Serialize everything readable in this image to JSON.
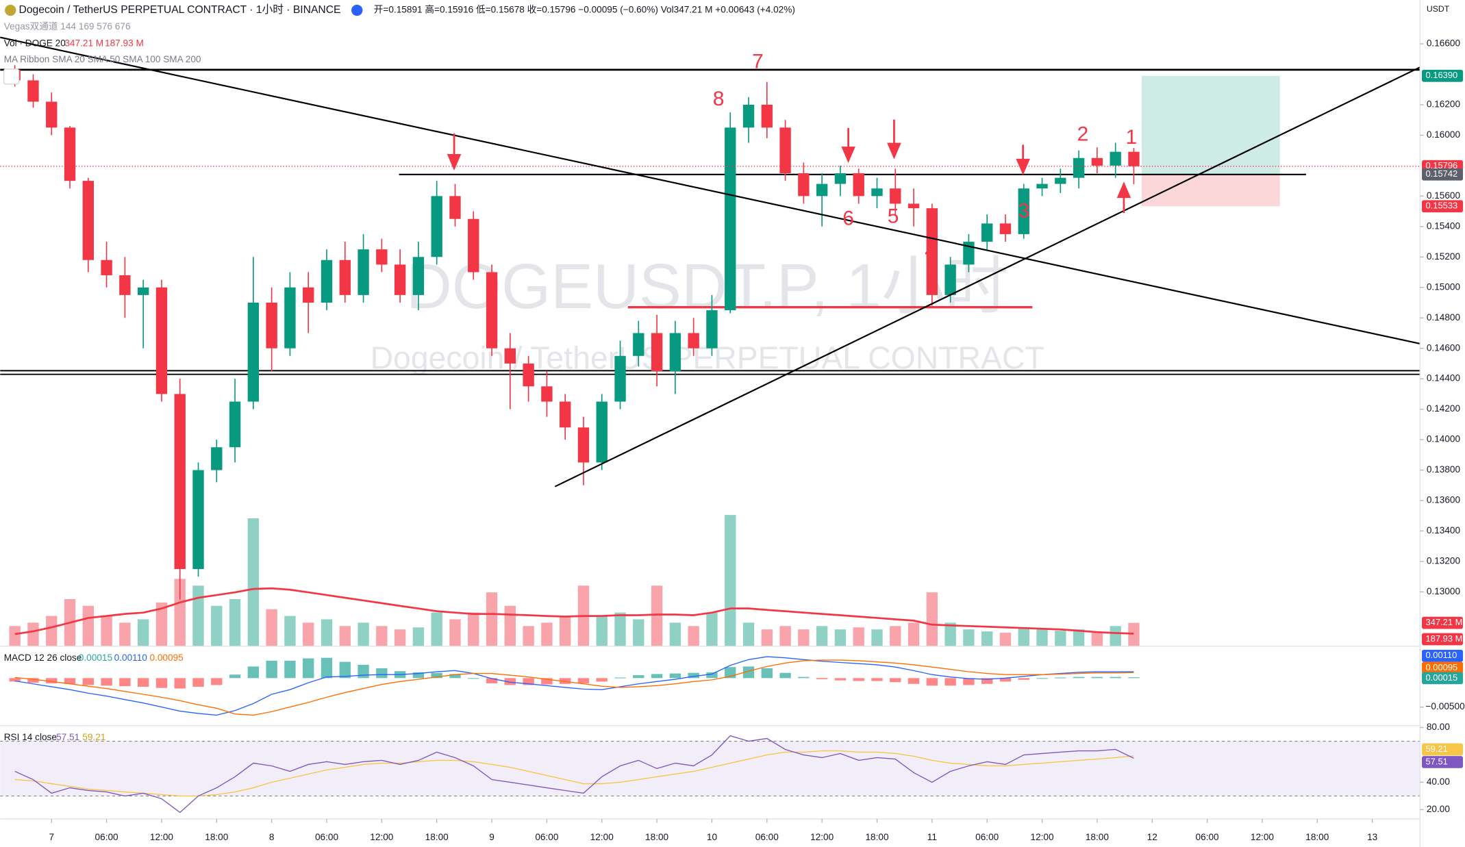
{
  "header": {
    "symbol": "Dogecoin / TetherUS PERPETUAL CONTRACT · 1小时 · BINANCE",
    "ohlc": "开=0.15891  高=0.15916  低=0.15678  收=0.15796  −0.00095 (−0.60%)  Vol347.21 M  +0.00643 (+4.02%)",
    "vegas": "Vegas双通道  144 169 576 676",
    "ribbon": "MA Ribbon SMA 20 SMA 50 SMA 100 SMA 200"
  },
  "chart_data": {
    "type": "candlestick",
    "currency": "USDT",
    "watermark": [
      "DOGEUSDT.P, 1小时",
      "Dogecoin / TetherUS PERPETUAL CONTRACT"
    ],
    "up_color": "#089981",
    "down_color": "#f23645",
    "x": [
      -4,
      -2,
      0,
      2,
      4,
      6,
      8,
      10,
      12,
      14,
      16,
      18,
      20,
      22,
      24,
      26,
      28,
      30,
      32,
      34,
      36,
      38,
      40,
      42,
      44,
      46,
      48,
      50,
      52,
      54,
      56,
      58,
      60,
      62,
      64,
      66,
      68,
      70,
      72,
      74,
      76,
      78,
      80,
      82,
      84,
      86,
      88,
      90,
      92,
      94,
      96,
      98,
      100,
      102,
      104,
      106,
      108,
      110,
      112,
      114,
      116,
      118
    ],
    "open": [
      0.1643,
      0.1636,
      0.1622,
      0.1605,
      0.157,
      0.1518,
      0.1508,
      0.1495,
      0.15,
      0.143,
      0.1315,
      0.138,
      0.1395,
      0.1425,
      0.149,
      0.146,
      0.15,
      0.149,
      0.1518,
      0.1495,
      0.1525,
      0.1515,
      0.1495,
      0.152,
      0.156,
      0.1545,
      0.151,
      0.146,
      0.145,
      0.1435,
      0.1425,
      0.1408,
      0.1385,
      0.1425,
      0.1455,
      0.147,
      0.1445,
      0.147,
      0.146,
      0.1485,
      0.1605,
      0.162,
      0.1605,
      0.1575,
      0.156,
      0.1568,
      0.1575,
      0.156,
      0.1565,
      0.1555,
      0.1552,
      0.1495,
      0.1515,
      0.153,
      0.1542,
      0.1535,
      0.1565,
      0.1568,
      0.1572,
      0.1585,
      0.158,
      0.15891
    ],
    "high": [
      0.1646,
      0.164,
      0.1628,
      0.1606,
      0.1572,
      0.153,
      0.152,
      0.1505,
      0.1505,
      0.144,
      0.1385,
      0.14,
      0.144,
      0.152,
      0.15,
      0.151,
      0.151,
      0.1525,
      0.153,
      0.1535,
      0.1532,
      0.1525,
      0.153,
      0.157,
      0.1568,
      0.155,
      0.1515,
      0.147,
      0.1455,
      0.1445,
      0.143,
      0.1415,
      0.143,
      0.1465,
      0.1478,
      0.1482,
      0.1478,
      0.148,
      0.1495,
      0.1615,
      0.1625,
      0.1635,
      0.161,
      0.1582,
      0.1575,
      0.158,
      0.1578,
      0.1572,
      0.1578,
      0.1565,
      0.1555,
      0.152,
      0.1535,
      0.1548,
      0.1548,
      0.1568,
      0.1572,
      0.1578,
      0.159,
      0.1592,
      0.1595,
      0.15916
    ],
    "low": [
      0.1632,
      0.1618,
      0.16,
      0.1565,
      0.151,
      0.15,
      0.148,
      0.146,
      0.1425,
      0.1295,
      0.131,
      0.1372,
      0.1385,
      0.142,
      0.1445,
      0.1455,
      0.147,
      0.1485,
      0.149,
      0.149,
      0.151,
      0.149,
      0.1485,
      0.1515,
      0.154,
      0.1505,
      0.1455,
      0.142,
      0.1425,
      0.1415,
      0.14,
      0.137,
      0.138,
      0.142,
      0.1448,
      0.1435,
      0.143,
      0.1455,
      0.1455,
      0.1483,
      0.1595,
      0.1598,
      0.157,
      0.1555,
      0.154,
      0.156,
      0.1555,
      0.1552,
      0.1548,
      0.154,
      0.1488,
      0.149,
      0.151,
      0.1525,
      0.153,
      0.1532,
      0.156,
      0.1562,
      0.1565,
      0.1575,
      0.1572,
      0.15678
    ],
    "close": [
      0.1636,
      0.1622,
      0.1605,
      0.157,
      0.1518,
      0.1508,
      0.1495,
      0.15,
      0.143,
      0.1315,
      0.138,
      0.1395,
      0.1425,
      0.149,
      0.146,
      0.15,
      0.149,
      0.1518,
      0.1495,
      0.1525,
      0.1515,
      0.1495,
      0.152,
      0.156,
      0.1545,
      0.151,
      0.146,
      0.145,
      0.1435,
      0.1425,
      0.1408,
      0.1385,
      0.1425,
      0.1455,
      0.147,
      0.1445,
      0.147,
      0.146,
      0.1485,
      0.1605,
      0.162,
      0.1605,
      0.1575,
      0.156,
      0.1568,
      0.1575,
      0.156,
      0.1565,
      0.1555,
      0.1552,
      0.1495,
      0.1515,
      0.153,
      0.1542,
      0.1535,
      0.1565,
      0.1568,
      0.1572,
      0.1585,
      0.158,
      0.15891,
      0.15796
    ],
    "volume": [
      300,
      350,
      450,
      700,
      600,
      450,
      350,
      400,
      650,
      1000,
      900,
      600,
      700,
      1900,
      550,
      450,
      350,
      400,
      300,
      350,
      300,
      250,
      280,
      500,
      400,
      500,
      800,
      600,
      300,
      350,
      450,
      900,
      450,
      500,
      400,
      900,
      350,
      300,
      500,
      1950,
      350,
      250,
      300,
      250,
      300,
      250,
      280,
      250,
      300,
      350,
      800,
      350,
      250,
      220,
      200,
      280,
      250,
      230,
      250,
      200,
      300,
      347.21
    ],
    "volume_ma": [
      180,
      220,
      280,
      350,
      420,
      450,
      480,
      500,
      560,
      650,
      720,
      760,
      800,
      850,
      860,
      840,
      800,
      760,
      720,
      680,
      640,
      600,
      560,
      520,
      500,
      480,
      480,
      470,
      460,
      450,
      440,
      450,
      450,
      460,
      460,
      470,
      470,
      460,
      500,
      560,
      560,
      540,
      520,
      500,
      480,
      460,
      440,
      420,
      400,
      380,
      320,
      310,
      300,
      290,
      280,
      270,
      260,
      250,
      230,
      210,
      195,
      187.93
    ],
    "volume_lim": [
      0,
      9600
    ],
    "volume_ma_color": "#f23645",
    "volume_legend": [
      "Vol · DOGE 20",
      "347.21 M",
      "187.93 M"
    ],
    "xlim": [
      -5.6,
      149.2
    ],
    "xticks": [
      {
        "value": 0,
        "label": "7"
      },
      {
        "value": 6,
        "label": "06:00"
      },
      {
        "value": 12,
        "label": "12:00"
      },
      {
        "value": 18,
        "label": "18:00"
      },
      {
        "value": 24,
        "label": "8"
      },
      {
        "value": 30,
        "label": "06:00"
      },
      {
        "value": 36,
        "label": "12:00"
      },
      {
        "value": 42,
        "label": "18:00"
      },
      {
        "value": 48,
        "label": "9"
      },
      {
        "value": 54,
        "label": "06:00"
      },
      {
        "value": 60,
        "label": "12:00"
      },
      {
        "value": 66,
        "label": "18:00"
      },
      {
        "value": 72,
        "label": "10"
      },
      {
        "value": 78,
        "label": "06:00"
      },
      {
        "value": 84,
        "label": "12:00"
      },
      {
        "value": 90,
        "label": "18:00"
      },
      {
        "value": 96,
        "label": "11"
      },
      {
        "value": 102,
        "label": "06:00"
      },
      {
        "value": 108,
        "label": "12:00"
      },
      {
        "value": 114,
        "label": "18:00"
      },
      {
        "value": 120,
        "label": "12"
      },
      {
        "value": 126,
        "label": "06:00"
      },
      {
        "value": 132,
        "label": "12:00"
      },
      {
        "value": 138,
        "label": "18:00"
      },
      {
        "value": 144,
        "label": "13"
      }
    ],
    "ylim": [
      0.12643,
      0.16888
    ],
    "yticks": [
      {
        "value": 0.166,
        "label": "0.16600"
      },
      {
        "value": 0.162,
        "label": "0.16200"
      },
      {
        "value": 0.16,
        "label": "0.16000"
      },
      {
        "value": 0.156,
        "label": "0.15600"
      },
      {
        "value": 0.154,
        "label": "0.15400"
      },
      {
        "value": 0.152,
        "label": "0.15200"
      },
      {
        "value": 0.15,
        "label": "0.15000"
      },
      {
        "value": 0.148,
        "label": "0.14800"
      },
      {
        "value": 0.146,
        "label": "0.14600"
      },
      {
        "value": 0.144,
        "label": "0.14400"
      },
      {
        "value": 0.142,
        "label": "0.14200"
      },
      {
        "value": 0.14,
        "label": "0.14000"
      },
      {
        "value": 0.138,
        "label": "0.13800"
      },
      {
        "value": 0.136,
        "label": "0.13600"
      },
      {
        "value": 0.134,
        "label": "0.13400"
      },
      {
        "value": 0.132,
        "label": "0.13200"
      },
      {
        "value": 0.13,
        "label": "0.13000"
      }
    ],
    "hlines": [
      {
        "value": 0.1643,
        "color": "#000000"
      },
      {
        "value": 0.15742,
        "color": "#000000"
      },
      {
        "value": 0.1487,
        "color": "#f23645"
      },
      {
        "value": 0.14453,
        "color": "#000000"
      },
      {
        "value": 0.14429,
        "color": "#000000"
      }
    ],
    "position": {
      "entry": 0.15742,
      "target": 0.1639,
      "stop": 0.15533
    },
    "price_labels": [
      {
        "value": 0.1639,
        "label": "0.16390",
        "color": "#089981"
      },
      {
        "value": 0.15796,
        "label": "0.15796",
        "color": "#f23645"
      },
      {
        "value": 0.15742,
        "label": "0.15742",
        "color": "#5d606b"
      },
      {
        "value": 0.15533,
        "label": "0.15533",
        "color": "#f23645"
      }
    ],
    "annotations": [
      "7",
      "8",
      "6",
      "5",
      "4",
      "3",
      "2",
      "1"
    ],
    "macd": {
      "title": "MACD 12 26 close",
      "legend": [
        "0.00015",
        "0.00110",
        "0.00095"
      ],
      "lim": [
        -0.0082,
        0.0055
      ],
      "ticks": [
        {
          "value": -0.005,
          "label": "−0.00500"
        }
      ],
      "line_color": "#2962ff",
      "signal_color": "#ff6d00",
      "hist_up": "#26a69a",
      "hist_down": "#ff5252",
      "macd": [
        -0.0005,
        -0.001,
        -0.0015,
        -0.002,
        -0.0026,
        -0.0031,
        -0.0037,
        -0.0043,
        -0.005,
        -0.0057,
        -0.0061,
        -0.0064,
        -0.0056,
        -0.0044,
        -0.0028,
        -0.002,
        -0.0008,
        0.0002,
        0.0003,
        0.0005,
        0.0006,
        0.0006,
        0.0008,
        0.0011,
        0.0013,
        0.0008,
        -0.0001,
        -0.0007,
        -0.001,
        -0.0013,
        -0.0016,
        -0.0019,
        -0.002,
        -0.0015,
        -0.001,
        -0.0006,
        -0.0002,
        0.0003,
        0.0007,
        0.0022,
        0.0032,
        0.0037,
        0.0035,
        0.0032,
        0.0029,
        0.0027,
        0.0025,
        0.0023,
        0.0019,
        0.0013,
        0.0006,
        0.0002,
        -0.0001,
        -0.0002,
        0,
        0.0003,
        0.0006,
        0.0008,
        0.001,
        0.0011,
        0.0011,
        0.0011
      ],
      "signal": [
        0.0001,
        -0.0002,
        -0.0006,
        -0.001,
        -0.0014,
        -0.0018,
        -0.0023,
        -0.0028,
        -0.0033,
        -0.0039,
        -0.0046,
        -0.0052,
        -0.0062,
        -0.0064,
        -0.0058,
        -0.005,
        -0.0042,
        -0.0033,
        -0.0025,
        -0.0018,
        -0.0011,
        -0.0006,
        -0.0002,
        0.0002,
        0.0006,
        0.0008,
        0.0008,
        0.0005,
        0.0002,
        -0.0002,
        -0.0006,
        -0.001,
        -0.0014,
        -0.0016,
        -0.0015,
        -0.0013,
        -0.001,
        -0.0006,
        -0.0003,
        0.0003,
        0.0012,
        0.002,
        0.0026,
        0.003,
        0.0031,
        0.0031,
        0.003,
        0.0028,
        0.0026,
        0.0023,
        0.0019,
        0.0015,
        0.0011,
        0.0008,
        0.0006,
        0.0006,
        0.0006,
        0.0007,
        0.0008,
        0.0009,
        0.0009,
        0.00095
      ],
      "histogram": [
        -0.0006,
        -0.0008,
        -0.0009,
        -0.001,
        -0.0012,
        -0.0013,
        -0.0014,
        -0.0015,
        -0.0017,
        -0.0018,
        -0.0015,
        -0.0012,
        0.0006,
        0.002,
        0.003,
        0.003,
        0.0034,
        0.0035,
        0.0028,
        0.0023,
        0.0017,
        0.0012,
        0.001,
        0.0009,
        0.0007,
        0,
        -0.0009,
        -0.0012,
        -0.0012,
        -0.0011,
        -0.001,
        -0.0009,
        -0.0006,
        0.0001,
        0.0005,
        0.0007,
        0.0008,
        0.0009,
        0.001,
        0.0019,
        0.002,
        0.0017,
        0.0009,
        0.0002,
        -0.0002,
        -0.0004,
        -0.0005,
        -0.0005,
        -0.0007,
        -0.001,
        -0.0013,
        -0.0013,
        -0.0012,
        -0.001,
        -0.0006,
        -0.0003,
        0,
        0.0001,
        0.0002,
        0.0002,
        0.0002,
        0.00015
      ]
    },
    "rsi": {
      "title": "RSI 14 close",
      "legend": [
        "57.51",
        "59.21"
      ],
      "lim": [
        13.2,
        81.4
      ],
      "band": [
        30,
        70
      ],
      "ticks": [
        {
          "value": 80,
          "label": "80.00"
        },
        {
          "value": 40,
          "label": "40.00"
        },
        {
          "value": 20,
          "label": "20.00"
        }
      ],
      "line_color": "#7e57c2",
      "ma_color": "#f7c548",
      "rsi": [
        48,
        42,
        32,
        36,
        34,
        33,
        30,
        32,
        28,
        18,
        30,
        36,
        44,
        54,
        52,
        48,
        53,
        55,
        53,
        55,
        56,
        53,
        56,
        62,
        58,
        52,
        42,
        40,
        38,
        36,
        34,
        32,
        44,
        52,
        56,
        50,
        54,
        52,
        60,
        74,
        70,
        72,
        64,
        60,
        58,
        61,
        56,
        58,
        57,
        47,
        40,
        48,
        52,
        55,
        53,
        60,
        61,
        62,
        63,
        63,
        64,
        57.51
      ],
      "ma": [
        42,
        41,
        39,
        37,
        35,
        34,
        33,
        32,
        31,
        30,
        30,
        31,
        33,
        36,
        40,
        43,
        46,
        49,
        51,
        53,
        54,
        54,
        55,
        56,
        56,
        55,
        53,
        51,
        48,
        45,
        42,
        39,
        39,
        40,
        42,
        44,
        46,
        48,
        51,
        54,
        57,
        60,
        62,
        62,
        63,
        63,
        62,
        62,
        61,
        59,
        56,
        54,
        53,
        52,
        52,
        53,
        54,
        55,
        56,
        57,
        58,
        59.21
      ]
    }
  }
}
